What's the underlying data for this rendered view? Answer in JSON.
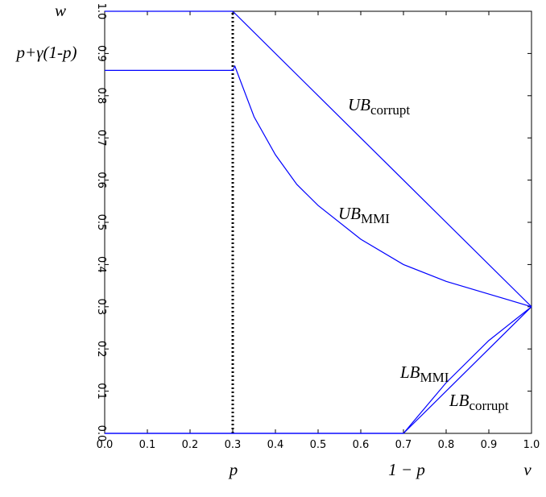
{
  "chart_data": {
    "type": "line",
    "xlim": [
      0,
      1
    ],
    "ylim": [
      0,
      1
    ],
    "xticks": [
      {
        "value": 0,
        "label": "0.0"
      },
      0.1,
      0.2,
      0.3,
      0.4,
      0.5,
      0.6,
      0.7,
      0.8,
      0.9,
      {
        "value": 1,
        "label": "1.0"
      }
    ],
    "yticks": [
      {
        "value": 0,
        "label": "0.0"
      },
      0.1,
      0.2,
      0.3,
      0.4,
      0.5,
      0.6,
      0.7,
      0.8,
      0.9,
      {
        "value": 1,
        "label": "1.0"
      }
    ],
    "series": [
      {
        "name": "UB corrupt",
        "color": "#0000ff",
        "x": [
          0,
          0.3,
          1
        ],
        "values": [
          1,
          1,
          0.3
        ]
      },
      {
        "name": "UB MMI",
        "color": "#0000ff",
        "x": [
          0,
          0.3,
          0.305,
          0.35,
          0.4,
          0.45,
          0.5,
          0.6,
          0.7,
          0.8,
          0.9,
          1
        ],
        "values": [
          0.86,
          0.86,
          0.87,
          0.75,
          0.66,
          0.59,
          0.54,
          0.46,
          0.4,
          0.36,
          0.33,
          0.3
        ]
      },
      {
        "name": "LB MMI",
        "color": "#0000ff",
        "x": [
          0,
          0.7,
          0.8,
          0.9,
          1
        ],
        "values": [
          0,
          0,
          0.12,
          0.22,
          0.3
        ]
      },
      {
        "name": "LB corrupt",
        "color": "#0000ff",
        "x": [
          0,
          0.7,
          1
        ],
        "values": [
          0,
          0,
          0.3
        ]
      }
    ],
    "vline": {
      "x": 0.3,
      "color": "#000000"
    },
    "annotations": [
      {
        "text": "w"
      },
      {
        "text": "p+γ(1-p)"
      },
      {
        "text": "p"
      },
      {
        "text": "1 − p"
      },
      {
        "text": "v"
      },
      {
        "text": "UB",
        "sub": "corrupt"
      },
      {
        "text": "UB",
        "sub": "MMI"
      },
      {
        "text": "LB",
        "sub": "MMI"
      },
      {
        "text": "LB",
        "sub": "corrupt"
      }
    ]
  }
}
